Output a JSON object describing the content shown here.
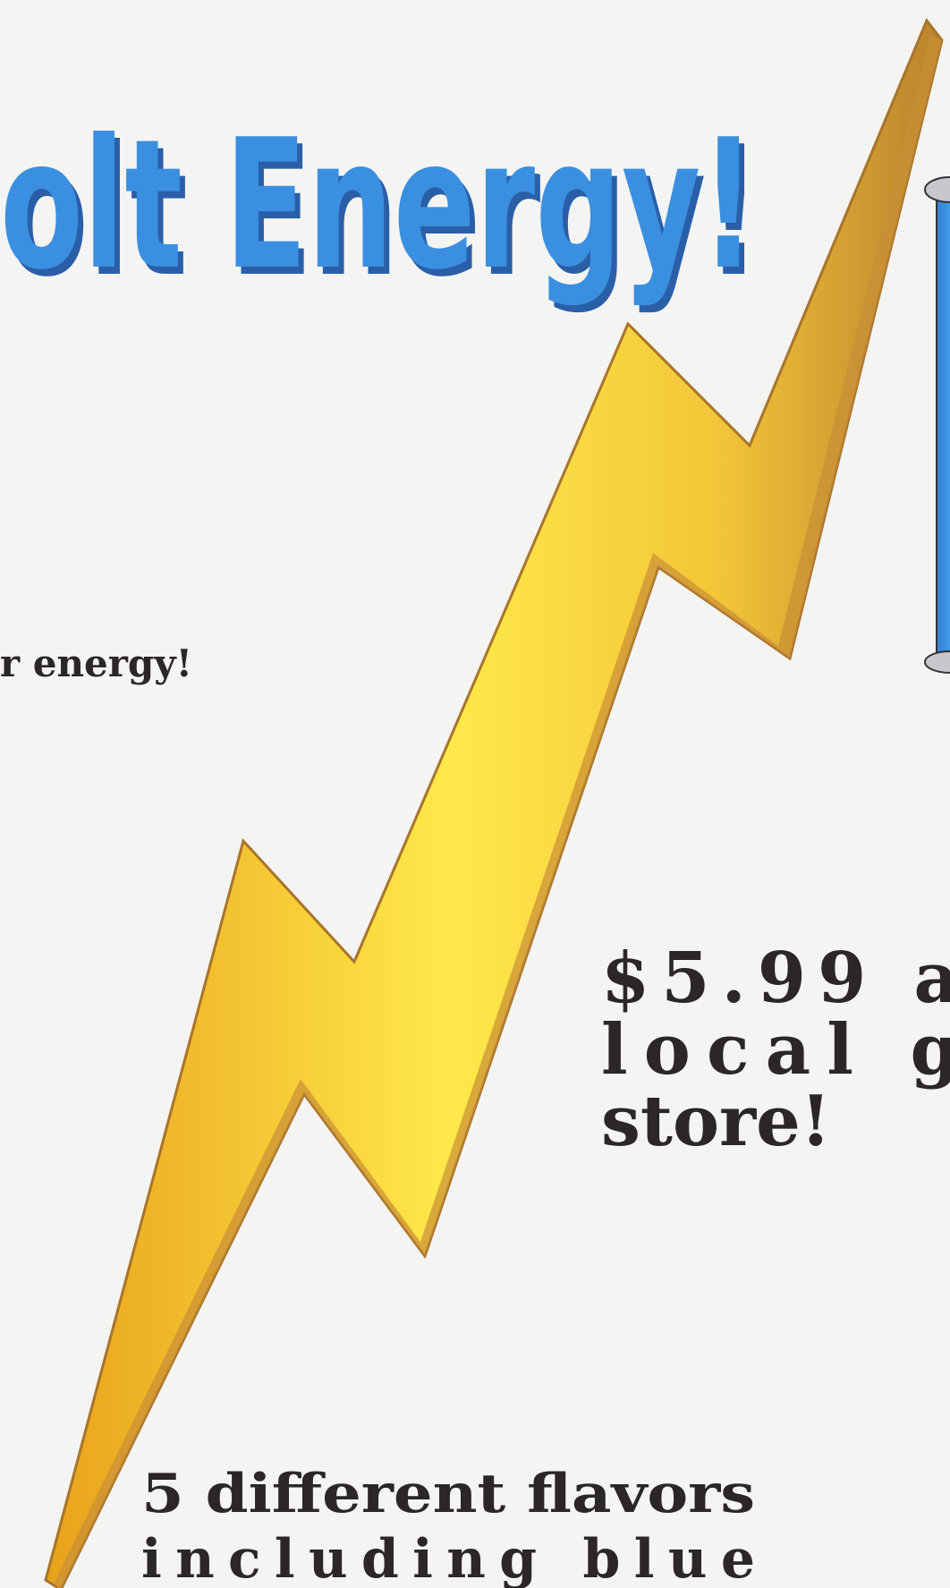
{
  "header": {
    "title": "olt Energy!",
    "tagline": "r energy!"
  },
  "price": {
    "lines": [
      "$5.99 a",
      "local g",
      "store!"
    ]
  },
  "flavors": {
    "lines": [
      "5 different flavors",
      "including blue"
    ]
  }
}
